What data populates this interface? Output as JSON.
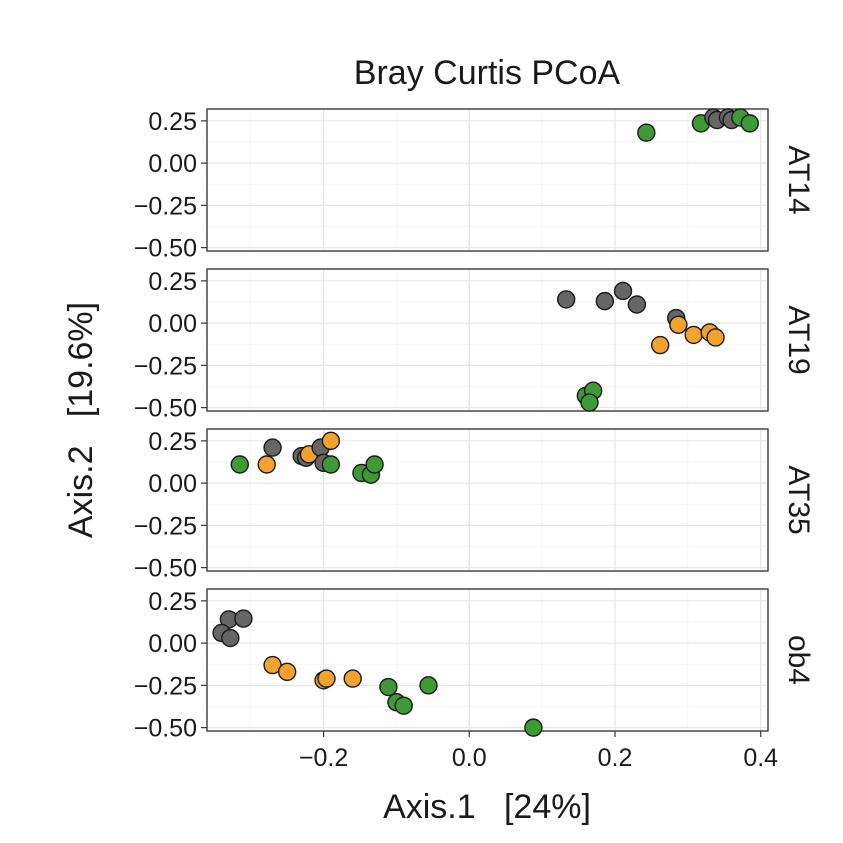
{
  "chart_data": {
    "type": "scatter",
    "title": "Bray Curtis PCoA",
    "xlabel": "Axis.1   [24%]",
    "ylabel": "Axis.2   [19.6%]",
    "xlim": [
      -0.36,
      0.41
    ],
    "ylim": [
      -0.52,
      0.32
    ],
    "x_ticks": [
      -0.2,
      0.0,
      0.2,
      0.4
    ],
    "x_tick_labels": [
      "−0.2",
      "0.0",
      "0.2",
      "0.4"
    ],
    "y_ticks": [
      0.25,
      0.0,
      -0.25,
      -0.5
    ],
    "y_tick_labels": [
      "0.25",
      "0.00",
      "−0.25",
      "−0.50"
    ],
    "grid": true,
    "legend": "none",
    "colors": {
      "gray": "#666666",
      "orange": "#f4a22d",
      "green": "#3d9a35"
    },
    "panels": [
      {
        "label": "AT14",
        "points": [
          {
            "x": 0.243,
            "y": 0.18,
            "c": "green"
          },
          {
            "x": 0.318,
            "y": 0.235,
            "c": "green"
          },
          {
            "x": 0.335,
            "y": 0.27,
            "c": "gray"
          },
          {
            "x": 0.34,
            "y": 0.255,
            "c": "gray"
          },
          {
            "x": 0.355,
            "y": 0.27,
            "c": "gray"
          },
          {
            "x": 0.36,
            "y": 0.255,
            "c": "gray"
          },
          {
            "x": 0.372,
            "y": 0.27,
            "c": "green"
          },
          {
            "x": 0.385,
            "y": 0.235,
            "c": "green"
          }
        ]
      },
      {
        "label": "AT19",
        "points": [
          {
            "x": 0.133,
            "y": 0.14,
            "c": "gray"
          },
          {
            "x": 0.186,
            "y": 0.13,
            "c": "gray"
          },
          {
            "x": 0.211,
            "y": 0.19,
            "c": "gray"
          },
          {
            "x": 0.23,
            "y": 0.11,
            "c": "gray"
          },
          {
            "x": 0.284,
            "y": 0.03,
            "c": "gray"
          },
          {
            "x": 0.287,
            "y": -0.01,
            "c": "orange"
          },
          {
            "x": 0.262,
            "y": -0.13,
            "c": "orange"
          },
          {
            "x": 0.308,
            "y": -0.07,
            "c": "orange"
          },
          {
            "x": 0.33,
            "y": -0.055,
            "c": "orange"
          },
          {
            "x": 0.338,
            "y": -0.085,
            "c": "orange"
          },
          {
            "x": 0.16,
            "y": -0.43,
            "c": "green"
          },
          {
            "x": 0.17,
            "y": -0.4,
            "c": "green"
          },
          {
            "x": 0.165,
            "y": -0.47,
            "c": "green"
          }
        ]
      },
      {
        "label": "AT35",
        "points": [
          {
            "x": -0.315,
            "y": 0.11,
            "c": "green"
          },
          {
            "x": -0.278,
            "y": 0.11,
            "c": "orange"
          },
          {
            "x": -0.27,
            "y": 0.21,
            "c": "gray"
          },
          {
            "x": -0.23,
            "y": 0.16,
            "c": "gray"
          },
          {
            "x": -0.224,
            "y": 0.15,
            "c": "gray"
          },
          {
            "x": -0.22,
            "y": 0.17,
            "c": "orange"
          },
          {
            "x": -0.204,
            "y": 0.21,
            "c": "gray"
          },
          {
            "x": -0.2,
            "y": 0.12,
            "c": "gray"
          },
          {
            "x": -0.19,
            "y": 0.25,
            "c": "orange"
          },
          {
            "x": -0.19,
            "y": 0.11,
            "c": "green"
          },
          {
            "x": -0.148,
            "y": 0.06,
            "c": "green"
          },
          {
            "x": -0.135,
            "y": 0.05,
            "c": "green"
          },
          {
            "x": -0.13,
            "y": 0.11,
            "c": "green"
          }
        ]
      },
      {
        "label": "ob4",
        "points": [
          {
            "x": -0.33,
            "y": 0.14,
            "c": "gray"
          },
          {
            "x": -0.31,
            "y": 0.145,
            "c": "gray"
          },
          {
            "x": -0.34,
            "y": 0.06,
            "c": "gray"
          },
          {
            "x": -0.328,
            "y": 0.03,
            "c": "gray"
          },
          {
            "x": -0.27,
            "y": -0.13,
            "c": "orange"
          },
          {
            "x": -0.25,
            "y": -0.17,
            "c": "orange"
          },
          {
            "x": -0.2,
            "y": -0.22,
            "c": "orange"
          },
          {
            "x": -0.196,
            "y": -0.21,
            "c": "orange"
          },
          {
            "x": -0.16,
            "y": -0.21,
            "c": "orange"
          },
          {
            "x": -0.111,
            "y": -0.26,
            "c": "green"
          },
          {
            "x": -0.056,
            "y": -0.25,
            "c": "green"
          },
          {
            "x": -0.1,
            "y": -0.35,
            "c": "green"
          },
          {
            "x": -0.09,
            "y": -0.37,
            "c": "green"
          },
          {
            "x": 0.088,
            "y": -0.5,
            "c": "green"
          }
        ]
      }
    ]
  }
}
